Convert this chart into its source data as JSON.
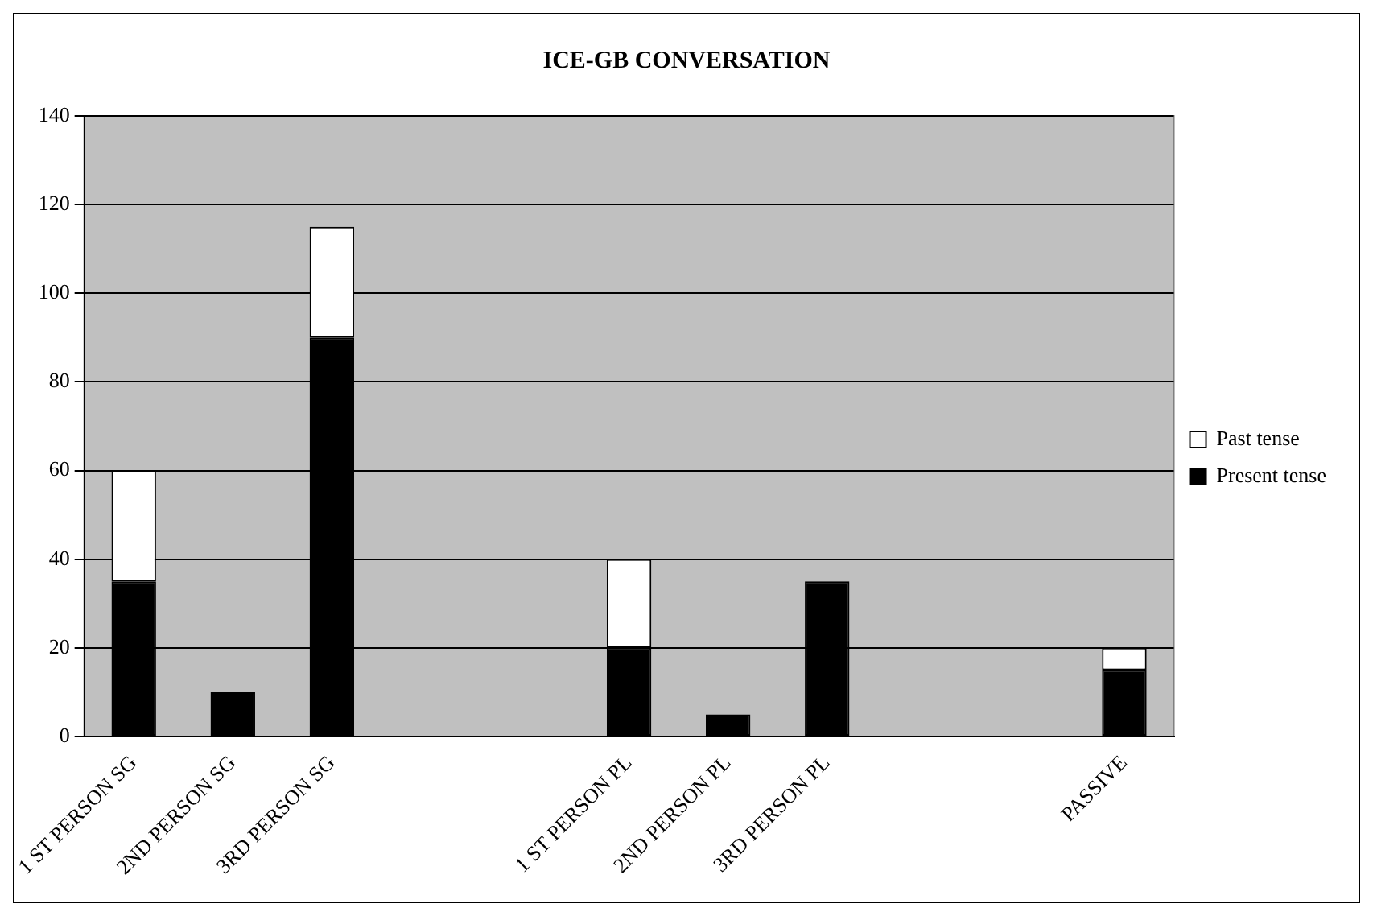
{
  "chart_data": {
    "type": "bar",
    "title": "ICE-GB CONVERSATION",
    "categories": [
      "1 ST PERSON SG",
      "2ND PERSON SG",
      "3RD PERSON SG",
      null,
      null,
      "1 ST PERSON PL",
      "2ND PERSON PL",
      "3RD PERSON PL",
      null,
      null,
      "PASSIVE"
    ],
    "series": [
      {
        "name": "Present tense",
        "color": "#000000",
        "values": [
          35,
          10,
          90,
          null,
          null,
          20,
          5,
          35,
          null,
          null,
          15
        ]
      },
      {
        "name": "Past tense",
        "color": "#ffffff",
        "values": [
          25,
          null,
          25,
          null,
          null,
          20,
          null,
          null,
          null,
          null,
          5
        ]
      }
    ],
    "stacked": true,
    "ylim": [
      0,
      140
    ],
    "yticks": [
      0,
      20,
      40,
      60,
      80,
      100,
      120,
      140
    ],
    "grid": "y",
    "legend": "right"
  }
}
